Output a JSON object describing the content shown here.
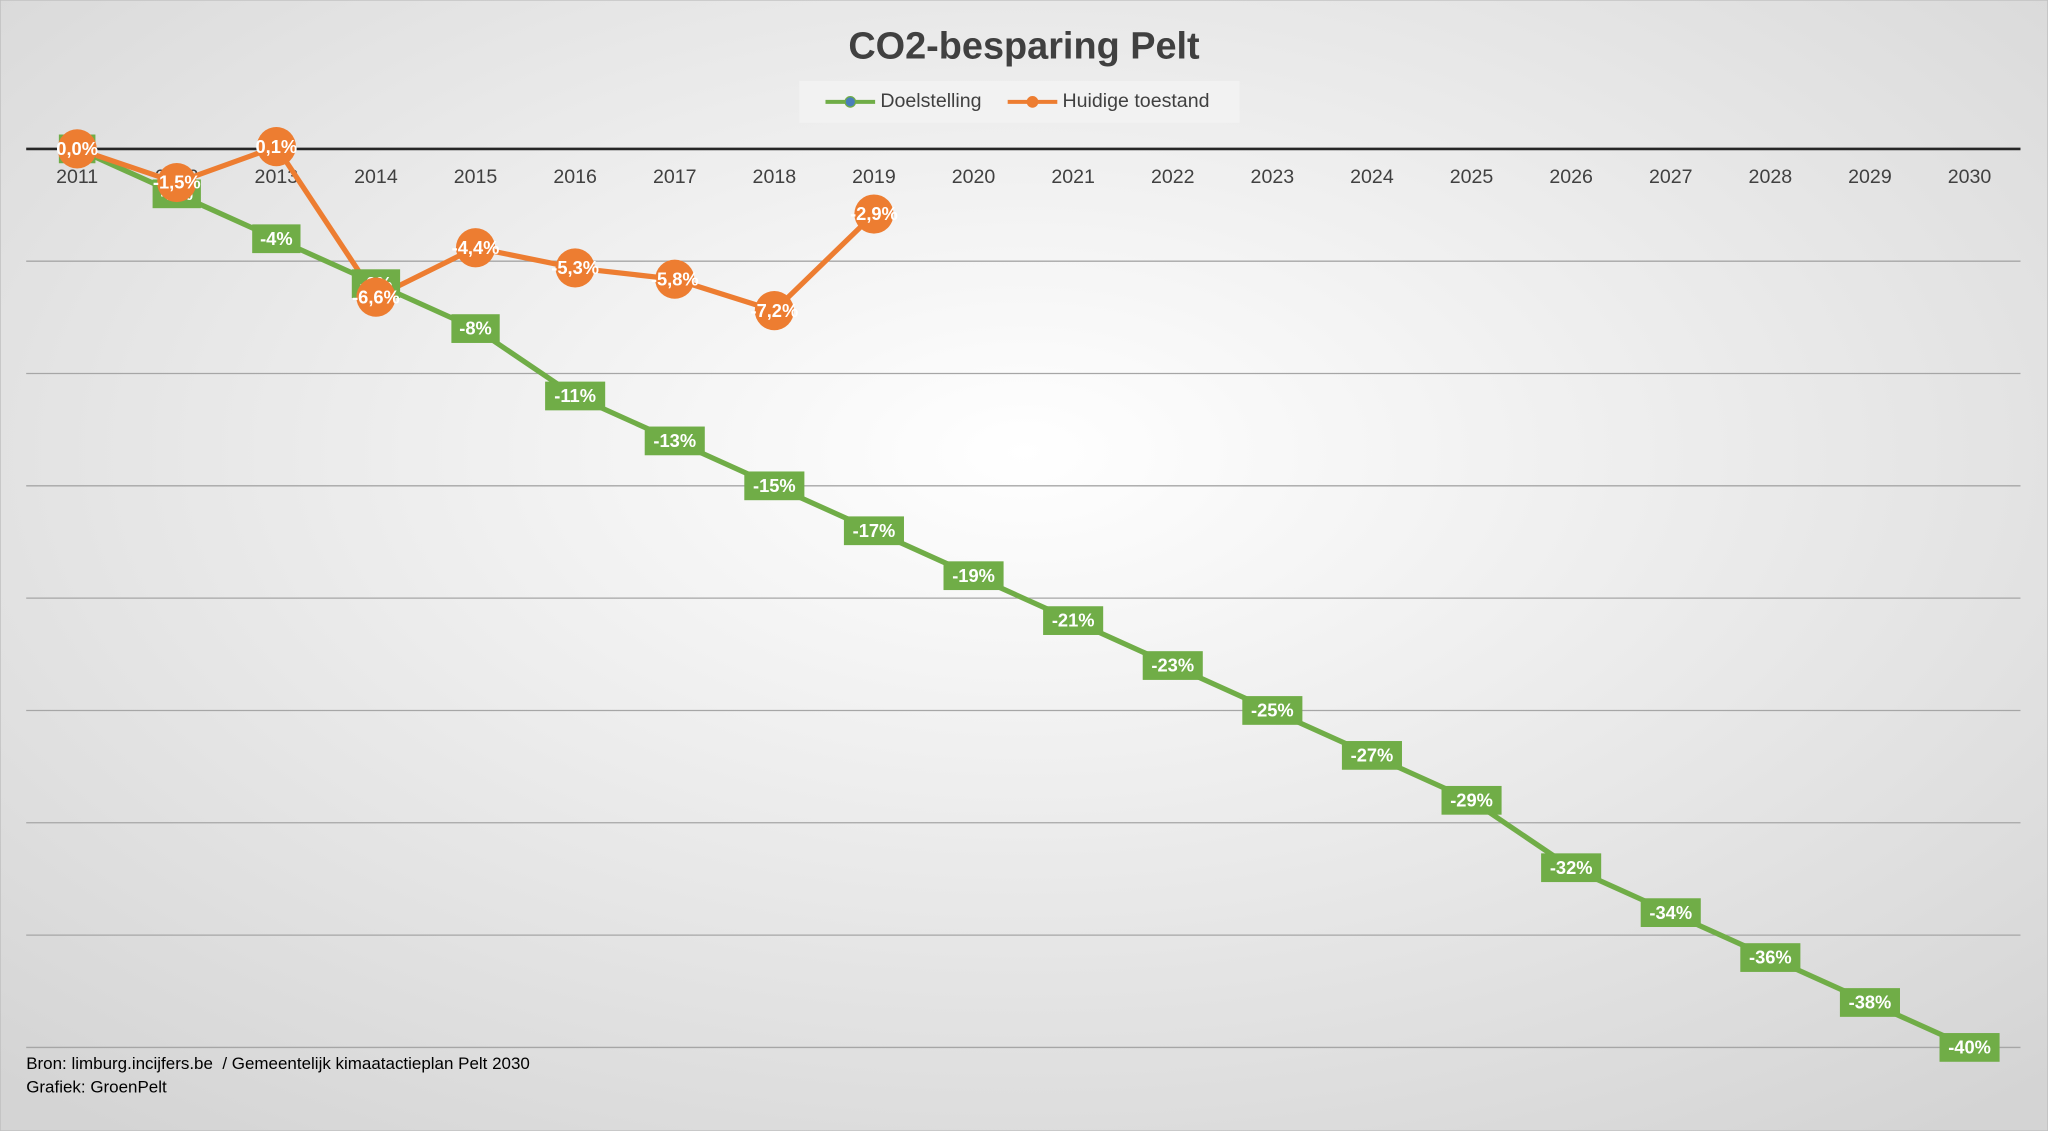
{
  "chart_data": {
    "type": "line",
    "title": "CO2-besparing Pelt",
    "categories": [
      "2011",
      "2012",
      "2013",
      "2014",
      "2015",
      "2016",
      "2017",
      "2018",
      "2019",
      "2020",
      "2021",
      "2022",
      "2023",
      "2024",
      "2025",
      "2026",
      "2027",
      "2028",
      "2029",
      "2030"
    ],
    "series": [
      {
        "name": "Doelstelling",
        "color": "#70ad47",
        "marker_color": "#4a7ebb",
        "values": [
          0,
          -2,
          -4,
          -6,
          -8,
          -11,
          -13,
          -15,
          -17,
          -19,
          -21,
          -23,
          -25,
          -27,
          -29,
          -32,
          -34,
          -36,
          -38,
          -40
        ],
        "value_labels": [
          "0%",
          "-2%",
          "-4%",
          "-6%",
          "-8%",
          "-11%",
          "-13%",
          "-15%",
          "-17%",
          "-19%",
          "-21%",
          "-23%",
          "-25%",
          "-27%",
          "-29%",
          "-32%",
          "-34%",
          "-36%",
          "-38%",
          "-40%"
        ]
      },
      {
        "name": "Huidige toestand",
        "color": "#ed7d31",
        "values": [
          0,
          -1.5,
          0.1,
          -6.6,
          -4.4,
          -5.3,
          -5.8,
          -7.2,
          -2.9,
          null,
          null,
          null,
          null,
          null,
          null,
          null,
          null,
          null,
          null,
          null
        ],
        "value_labels": [
          "0,0%",
          "-1,5%",
          "0,1%",
          "-6,6%",
          "-4,4%",
          "-5,3%",
          "-5,8%",
          "-7,2%",
          "-2,9%",
          null,
          null,
          null,
          null,
          null,
          null,
          null,
          null,
          null,
          null,
          null
        ]
      }
    ],
    "ylim": [
      -40,
      0
    ],
    "yticks": [
      -40,
      -35,
      -30,
      -25,
      -20,
      -15,
      -10,
      -5,
      0
    ],
    "grid": true,
    "legend": "top",
    "footnotes": [
      "Bron: limburg.incijfers.be  / Gemeentelijk kimaatactieplan Pelt 2030",
      "Grafiek: GroenPelt"
    ]
  }
}
